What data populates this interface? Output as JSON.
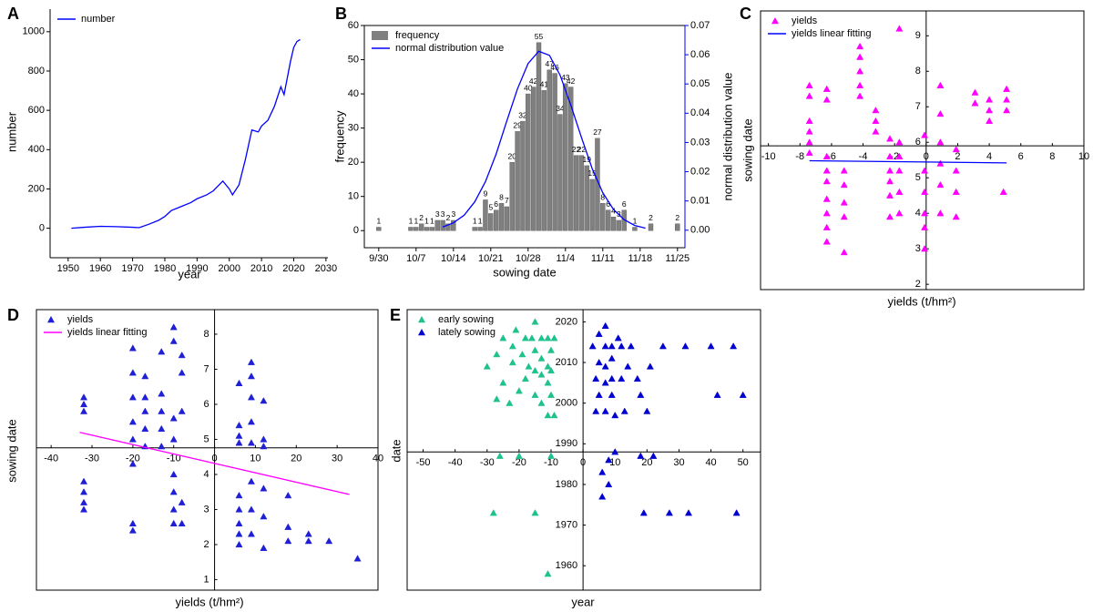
{
  "chart_data": [
    {
      "type": "line",
      "panel": "A",
      "x_label": "year",
      "y_label": "number",
      "frame": false,
      "legend": "upper left",
      "xlim": [
        1944.4,
        2030.6
      ],
      "ylim": [
        -150,
        1115
      ],
      "xticks": [
        1950,
        1960,
        1970,
        1980,
        1990,
        2000,
        2010,
        2020,
        2030
      ],
      "yticks": [
        0,
        200,
        400,
        600,
        800,
        1000
      ],
      "x": [
        1951,
        1955,
        1960,
        1965,
        1970,
        1972,
        1975,
        1978,
        1980,
        1982,
        1985,
        1988,
        1990,
        1993,
        1995,
        1998,
        2000,
        2001,
        2003,
        2005,
        2007,
        2009,
        2010,
        2012,
        2014,
        2016,
        2017,
        2019,
        2020,
        2021,
        2022
      ],
      "series": [
        {
          "name": "number",
          "color": "#0000ff",
          "values": [
            0,
            5,
            10,
            8,
            5,
            3,
            20,
            40,
            60,
            90,
            110,
            130,
            150,
            170,
            190,
            240,
            200,
            170,
            220,
            350,
            500,
            490,
            520,
            550,
            620,
            720,
            680,
            850,
            920,
            950,
            960
          ]
        }
      ]
    },
    {
      "type": "bar",
      "panel": "B",
      "x_label": "sowing date",
      "y_label": "frequency",
      "y2_label": "normal distribution value",
      "frame": true,
      "legend": "upper left",
      "y2_color": "#0000ff",
      "xlim": [
        -2.7,
        57.4
      ],
      "ylim": [
        -5,
        60
      ],
      "y2lim": [
        -0.006,
        0.07
      ],
      "xticks": [
        {
          "value": 0,
          "label": "9/30"
        },
        {
          "value": 7,
          "label": "10/7"
        },
        {
          "value": 14,
          "label": "10/14"
        },
        {
          "value": 21,
          "label": "10/21"
        },
        {
          "value": 28,
          "label": "10/28"
        },
        {
          "value": 35,
          "label": "11/4"
        },
        {
          "value": 42,
          "label": "11/11"
        },
        {
          "value": 49,
          "label": "11/18"
        },
        {
          "value": 56,
          "label": "11/25"
        }
      ],
      "yticks": [
        0,
        10,
        20,
        30,
        40,
        50,
        60
      ],
      "y2ticks": [
        {
          "value": 0,
          "label": "0.00"
        },
        0.01,
        0.02,
        0.03,
        0.04,
        0.05,
        0.06,
        0.07
      ],
      "series": [
        {
          "name": "frequency",
          "color": "#808080",
          "type": "bar",
          "x": [
            0,
            6,
            7,
            8,
            9,
            10,
            11,
            12,
            13,
            14,
            18,
            19,
            20,
            21,
            22,
            23,
            24,
            25,
            26,
            27,
            28,
            29,
            30,
            31,
            32,
            33,
            34,
            35,
            36,
            37,
            38,
            39,
            40,
            41,
            42,
            43,
            44,
            45,
            46,
            48,
            51,
            56
          ],
          "values": [
            1,
            1,
            1,
            2,
            1,
            1,
            3,
            3,
            2,
            3,
            1,
            1,
            9,
            5,
            6,
            8,
            7,
            20,
            29,
            32,
            40,
            42,
            55,
            41,
            47,
            46,
            34,
            43,
            42,
            22,
            22,
            19,
            15,
            27,
            8,
            6,
            4,
            3,
            6,
            1,
            2,
            2
          ]
        },
        {
          "name": "normal distribution value",
          "color": "#0000ff",
          "type": "line",
          "axis": "y2",
          "x": [
            12,
            14,
            16,
            18,
            20,
            22,
            24,
            26,
            28,
            30,
            32,
            34,
            36,
            38,
            40,
            42,
            44,
            46,
            48,
            50
          ],
          "values": [
            0.0011,
            0.0025,
            0.0051,
            0.0097,
            0.0166,
            0.026,
            0.0373,
            0.0483,
            0.057,
            0.0612,
            0.0598,
            0.053,
            0.0428,
            0.0317,
            0.0211,
            0.0128,
            0.0071,
            0.0036,
            0.0016,
            0.0007
          ]
        }
      ]
    },
    {
      "type": "scatter",
      "panel": "C",
      "x_label": "yields (t/hm²)",
      "y_label": "sowing date",
      "frame": true,
      "legend": "upper left",
      "xlim": [
        -10.5,
        10
      ],
      "ylim": [
        1.85,
        9.7
      ],
      "x_axis_at": 5.9,
      "y_axis_at": 0,
      "xticks": [
        -10,
        -8,
        -6,
        -4,
        -2,
        0,
        2,
        4,
        6,
        8,
        10
      ],
      "yticks": [
        2,
        3,
        4,
        5,
        6,
        7,
        8,
        9
      ],
      "series": [
        {
          "name": "yields",
          "color": "#ff00ff",
          "type": "scatter",
          "x": [
            -7.4,
            -7.4,
            -7.4,
            -7.4,
            -7.4,
            -7.4,
            -6.3,
            -6.3,
            -6.3,
            -6.3,
            -6.3,
            -6.3,
            -6.3,
            -6.3,
            -6.3,
            -5.2,
            -5.2,
            -5.2,
            -5.2,
            -5.2,
            -4.2,
            -4.2,
            -4.2,
            -4.2,
            -4.2,
            -3.2,
            -3.2,
            -3.2,
            -2.3,
            -2.3,
            -2.3,
            -2.3,
            -2.3,
            -2.3,
            -1.7,
            -1.7,
            -1.7,
            -1.7,
            -1.7,
            -1.7,
            -0.1,
            -0.1,
            -0.1,
            -0.1,
            -0.1,
            -0.1,
            0.9,
            0.9,
            0.9,
            0.9,
            0.9,
            0.9,
            1.9,
            1.9,
            1.9,
            1.9,
            3.1,
            3.1,
            4.0,
            4.0,
            4.0,
            5.1,
            5.1,
            5.1,
            4.9
          ],
          "values": [
            7.6,
            7.3,
            6.6,
            6.3,
            6.0,
            5.7,
            7.5,
            7.2,
            5.6,
            5.2,
            4.9,
            4.4,
            4.0,
            3.6,
            3.2,
            5.2,
            4.8,
            4.3,
            3.9,
            2.9,
            8.7,
            8.4,
            8.0,
            7.6,
            7.3,
            6.9,
            6.6,
            6.3,
            6.1,
            5.6,
            5.2,
            4.9,
            4.5,
            3.9,
            9.2,
            6.0,
            5.6,
            5.2,
            4.6,
            4.0,
            6.2,
            5.2,
            4.6,
            4.0,
            3.6,
            3.0,
            7.6,
            6.8,
            6.0,
            5.4,
            4.8,
            4.0,
            5.8,
            5.2,
            4.6,
            3.9,
            7.4,
            7.1,
            7.2,
            6.9,
            6.6,
            7.5,
            7.2,
            6.9,
            4.6
          ]
        },
        {
          "name": "yields linear fitting",
          "color": "#0000ff",
          "type": "line",
          "x": [
            -7.4,
            5.1
          ],
          "values": [
            5.48,
            5.42
          ]
        }
      ]
    },
    {
      "type": "scatter",
      "panel": "D",
      "x_label": "yields (t/hm²)",
      "y_label": "sowing date",
      "frame": true,
      "legend": "upper left",
      "xlim": [
        -43.6,
        40
      ],
      "ylim": [
        0.7,
        8.7
      ],
      "x_axis_at": 4.76,
      "y_axis_at": 0,
      "xticks": [
        -40,
        -30,
        -20,
        -10,
        0,
        10,
        20,
        30,
        40
      ],
      "yticks": [
        1,
        2,
        3,
        4,
        5,
        6,
        7,
        8
      ],
      "series": [
        {
          "name": "yields",
          "color": "#1f1fd6",
          "type": "scatter",
          "x": [
            -32,
            -32,
            -32,
            -32,
            -32,
            -32,
            -32,
            -20,
            -20,
            -20,
            -20,
            -20,
            -20,
            -20,
            -20,
            -17,
            -17,
            -17,
            -17,
            -17,
            -13,
            -13,
            -13,
            -13,
            -13,
            -10,
            -10,
            -10,
            -10,
            -10,
            -10,
            -10,
            -10,
            -8,
            -8,
            -8,
            -8,
            -8,
            6,
            6,
            6,
            6,
            6,
            6,
            6,
            6,
            6,
            9,
            9,
            9,
            9,
            9,
            9,
            9,
            9,
            12,
            12,
            12,
            12,
            12,
            12,
            18,
            18,
            18,
            23,
            23,
            28,
            35
          ],
          "values": [
            6.2,
            6.0,
            5.8,
            3.8,
            3.5,
            3.2,
            3.0,
            7.6,
            6.9,
            6.2,
            5.5,
            5.0,
            4.3,
            2.6,
            2.4,
            6.8,
            6.2,
            5.8,
            5.3,
            4.8,
            7.5,
            6.3,
            5.8,
            5.3,
            4.8,
            8.2,
            7.8,
            5.6,
            5.0,
            4.0,
            3.5,
            3.0,
            2.6,
            7.4,
            6.9,
            5.8,
            3.2,
            2.6,
            6.6,
            5.4,
            5.1,
            4.9,
            3.4,
            3.0,
            2.6,
            2.3,
            2.0,
            7.2,
            6.8,
            6.2,
            5.5,
            4.9,
            3.8,
            3.0,
            2.3,
            6.1,
            5.0,
            4.8,
            3.6,
            2.8,
            1.9,
            3.4,
            2.5,
            2.1,
            2.3,
            2.1,
            2.1,
            1.6
          ]
        },
        {
          "name": "yields linear fitting",
          "color": "#ff00ff",
          "type": "line",
          "x": [
            -33,
            33
          ],
          "values": [
            5.2,
            3.43
          ]
        }
      ]
    },
    {
      "type": "scatter",
      "panel": "E",
      "x_label": "year",
      "y_label": "date",
      "frame": true,
      "legend": "upper left",
      "xlim": [
        -55,
        55.5
      ],
      "ylim": [
        1954,
        2023
      ],
      "x_axis_at": 1988,
      "y_axis_at": 0,
      "xticks": [
        -50,
        -40,
        -30,
        -20,
        -10,
        0,
        10,
        20,
        30,
        40,
        50
      ],
      "yticks": [
        1960,
        1970,
        1980,
        1990,
        2000,
        2010,
        2020
      ],
      "series": [
        {
          "name": "early sowing",
          "color": "#1fc28f",
          "type": "scatter",
          "x": [
            -30,
            -27,
            -27,
            -26,
            -25,
            -25,
            -23,
            -22,
            -22,
            -21,
            -20,
            -20,
            -19,
            -18,
            -18,
            -17,
            -16,
            -15,
            -15,
            -15,
            -15,
            -15,
            -13,
            -13,
            -13,
            -13,
            -11,
            -11,
            -11,
            -11,
            -11,
            -10,
            -10,
            -10,
            -10,
            -9,
            -9,
            -28
          ],
          "values": [
            2009,
            2001,
            2012,
            1987,
            2016,
            2005,
            2000,
            2010,
            2014,
            2018,
            1987,
            2003,
            2012,
            2016,
            2006,
            2009,
            2016,
            2002,
            2008,
            2013,
            2020,
            1973,
            2000,
            2007,
            2011,
            2016,
            1997,
            2005,
            2009,
            2016,
            1958,
            1987,
            2002,
            2008,
            2013,
            1997,
            2016,
            1973
          ]
        },
        {
          "name": "lately sowing",
          "color": "#0000d0",
          "type": "scatter",
          "x": [
            3,
            4,
            4,
            5,
            5,
            5,
            6,
            6,
            7,
            7,
            7,
            7,
            7,
            8,
            8,
            9,
            9,
            9,
            9,
            10,
            10,
            11,
            12,
            12,
            13,
            14,
            15,
            17,
            18,
            18,
            19,
            20,
            21,
            22,
            25,
            27,
            32,
            33,
            40,
            42,
            47,
            48,
            50
          ],
          "values": [
            2014,
            1998,
            2006,
            2017,
            2010,
            2002,
            1983,
            1977,
            2019,
            2014,
            2009,
            2005,
            1998,
            1986,
            1980,
            2014,
            2011,
            2006,
            2002,
            1997,
            1988,
            2016,
            2014,
            2006,
            1998,
            2009,
            2014,
            2006,
            2002,
            1987,
            1973,
            1998,
            2009,
            1987,
            2014,
            1973,
            2014,
            1973,
            2014,
            2002,
            2014,
            1973,
            2002
          ]
        }
      ]
    }
  ]
}
